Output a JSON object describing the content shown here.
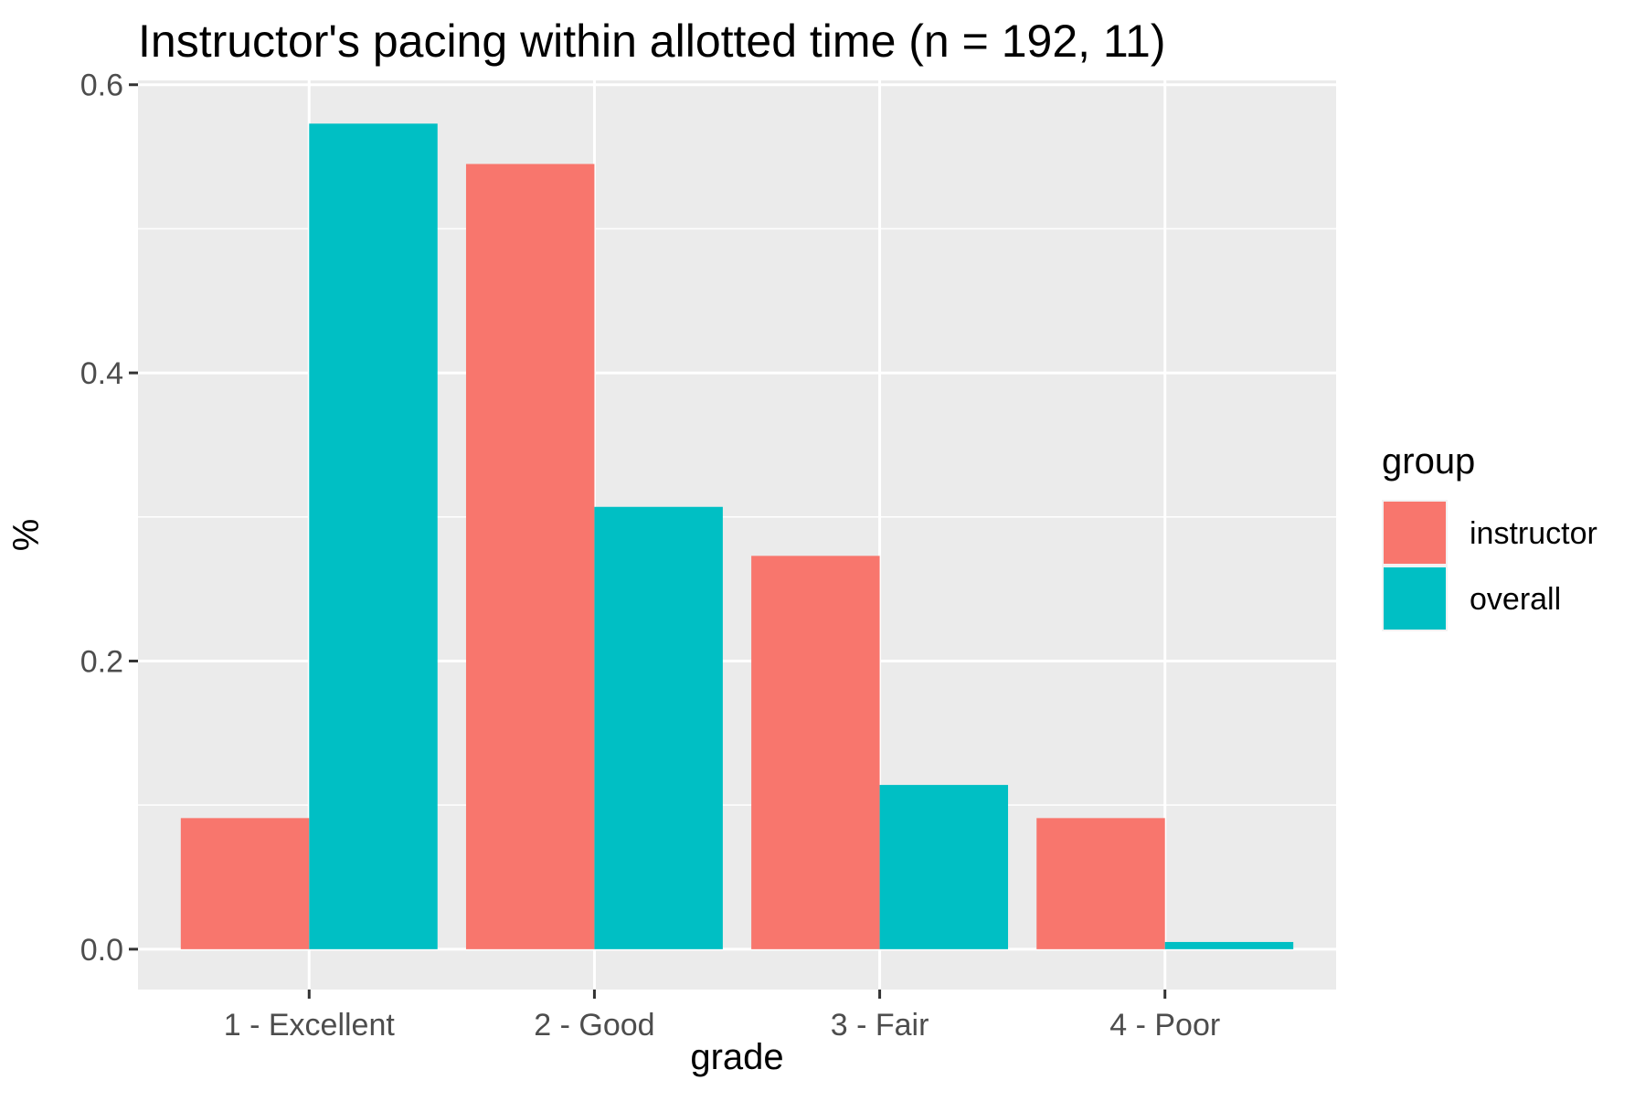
{
  "chart_data": {
    "type": "bar",
    "title": "Instructor's pacing within allotted time (n = 192, 11)",
    "xlabel": "grade",
    "ylabel": "%",
    "categories": [
      "1 - Excellent",
      "2 - Good",
      "3 - Fair",
      "4 - Poor"
    ],
    "series": [
      {
        "name": "instructor",
        "color": "#F8766D",
        "values": [
          0.091,
          0.545,
          0.273,
          0.091
        ]
      },
      {
        "name": "overall",
        "color": "#00BFC4",
        "values": [
          0.573,
          0.307,
          0.114,
          0.005
        ]
      }
    ],
    "ylim": [
      -0.028,
      0.603
    ],
    "yticks": [
      0.0,
      0.2,
      0.4,
      0.6
    ],
    "ytick_labels": [
      "0.0",
      "0.2",
      "0.4",
      "0.6"
    ],
    "grid": true,
    "legend": {
      "title": "group",
      "position": "right"
    },
    "panel_background": "#EBEBEB",
    "grid_color": "#FFFFFF"
  }
}
